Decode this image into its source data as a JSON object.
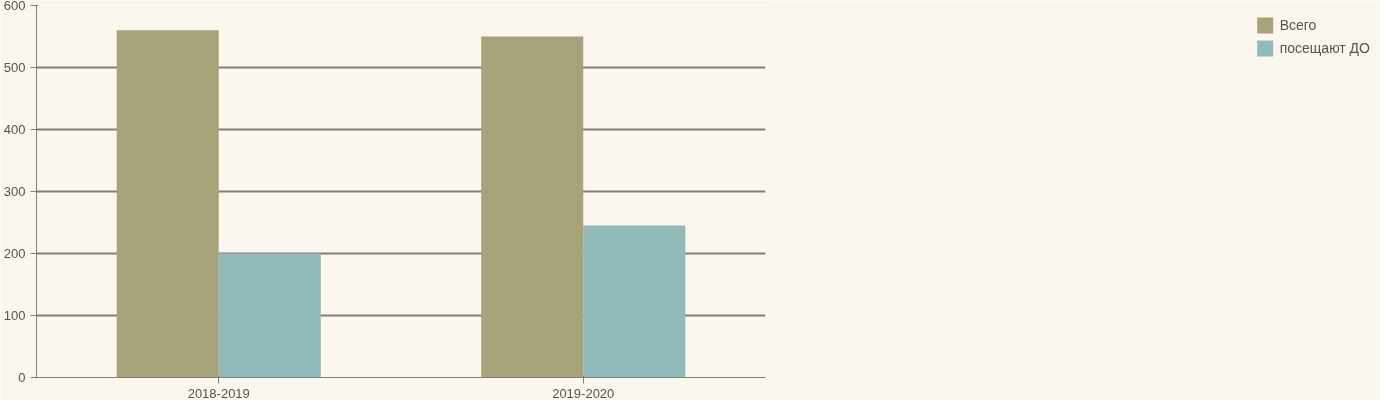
{
  "chart_data": {
    "type": "bar",
    "categories": [
      "2018-2019",
      "2019-2020"
    ],
    "series": [
      {
        "name": "Всего",
        "color": "#a6a27a",
        "values": [
          560,
          550
        ]
      },
      {
        "name": "посещают ДО",
        "color": "#91bbb9",
        "values": [
          200,
          245
        ]
      }
    ],
    "ylim": [
      0,
      600
    ],
    "yticks": [
      0,
      100,
      200,
      300,
      400,
      500,
      600
    ],
    "grid": "y",
    "legend": "right"
  }
}
